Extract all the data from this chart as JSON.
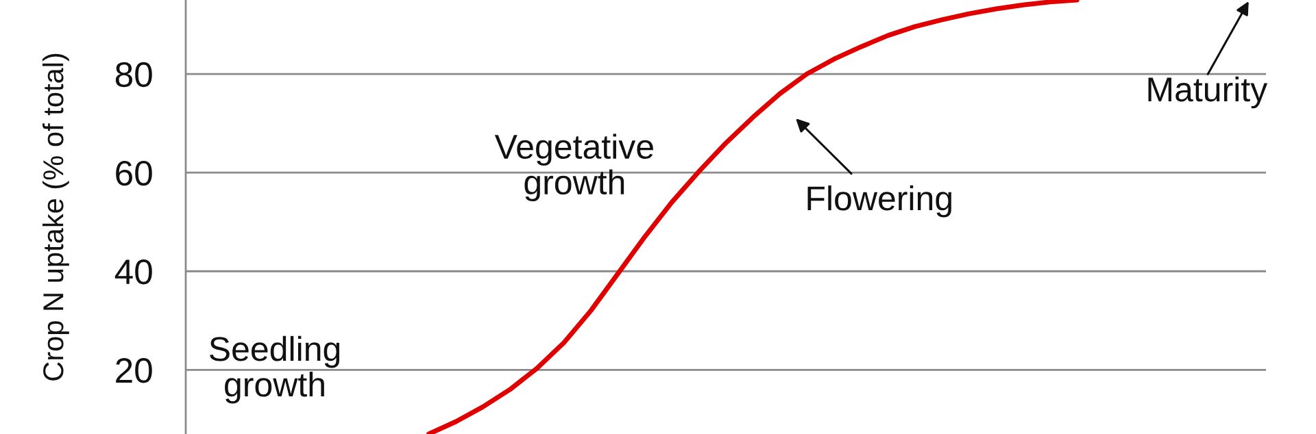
{
  "chart_data": {
    "type": "line",
    "ylabel": "Crop N uptake (% of total)",
    "categories": [
      null,
      null,
      null,
      null,
      null,
      null,
      null,
      null,
      null,
      null,
      null,
      null,
      null,
      null,
      null,
      null,
      null,
      null,
      null,
      null,
      null,
      null,
      null,
      null,
      null,
      null,
      null,
      null,
      null,
      null,
      null,
      null,
      null,
      null,
      null,
      null,
      null,
      null,
      null,
      null,
      null
    ],
    "series": [
      {
        "color": "#e00000",
        "values": [
          null,
          null,
          null,
          null,
          null,
          null,
          null,
          null,
          null,
          7,
          9.5,
          12.5,
          16,
          20.3,
          25.5,
          32,
          39.5,
          47,
          54,
          60.2,
          66,
          71.2,
          76,
          80,
          83,
          85.5,
          87.8,
          89.6,
          91,
          92.2,
          93.2,
          94,
          94.6,
          95,
          null,
          null,
          null,
          null,
          null,
          null,
          null
        ]
      }
    ],
    "ylim": [
      7,
      95
    ],
    "yticks": [
      20,
      40,
      60,
      80
    ],
    "grid": "y",
    "tick_labels": "y",
    "annotations": [
      "Seedling\ngrowth",
      "Vegetative\ngrowth",
      "Flowering",
      "Maturity"
    ]
  }
}
